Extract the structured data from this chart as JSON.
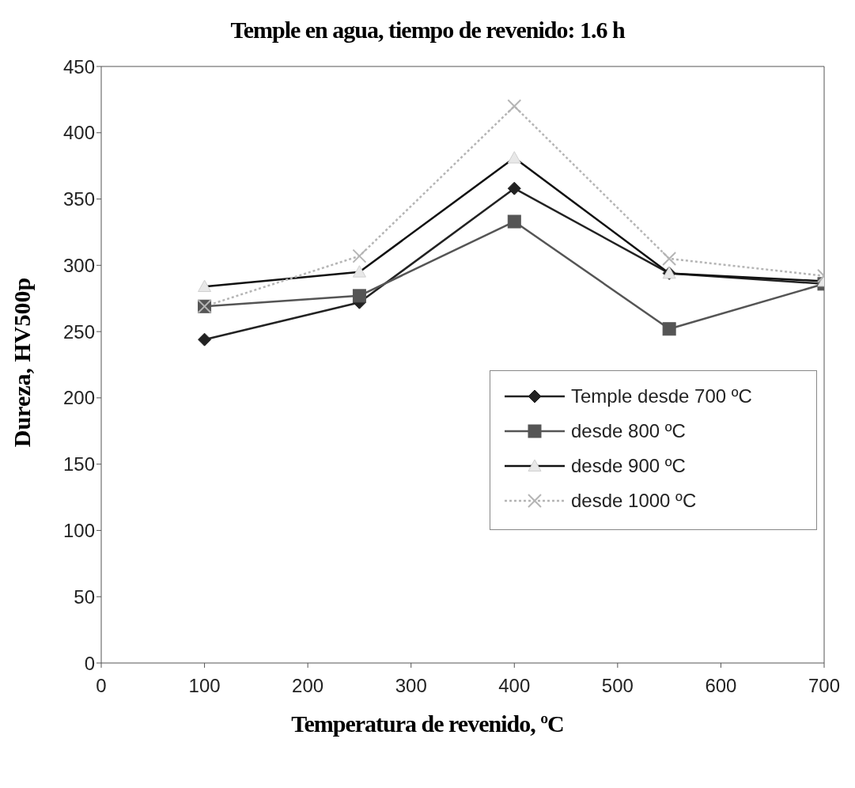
{
  "chart_data": {
    "type": "line",
    "title": "Temple en agua, tiempo de revenido: 1.6 h",
    "xlabel": "Temperatura de revenido, ºC",
    "ylabel": "Dureza, HV500p",
    "x": [
      100,
      250,
      400,
      550,
      700
    ],
    "series": [
      {
        "name": "Temple desde 700 ºC",
        "color": "#222222",
        "marker": "diamond",
        "line_style": "solid",
        "values": [
          244,
          272,
          358,
          294,
          286
        ]
      },
      {
        "name": "desde 800 ºC",
        "color": "#555555",
        "marker": "square",
        "line_style": "solid",
        "values": [
          269,
          277,
          333,
          252,
          286
        ]
      },
      {
        "name": "desde 900 ºC",
        "color": "#111111",
        "marker": "triangle",
        "line_style": "solid",
        "values": [
          284,
          295,
          381,
          294,
          288
        ]
      },
      {
        "name": "desde 1000 ºC",
        "color": "#b5b5b5",
        "marker": "cross",
        "line_style": "dotted",
        "values": [
          269,
          307,
          420,
          305,
          292
        ]
      }
    ],
    "xlim": [
      0,
      700
    ],
    "xticks": [
      0,
      100,
      200,
      300,
      400,
      500,
      600,
      700
    ],
    "ylim": [
      0,
      450
    ],
    "yticks": [
      0,
      50,
      100,
      150,
      200,
      250,
      300,
      350,
      400,
      450
    ],
    "grid": false,
    "legend": "right"
  }
}
